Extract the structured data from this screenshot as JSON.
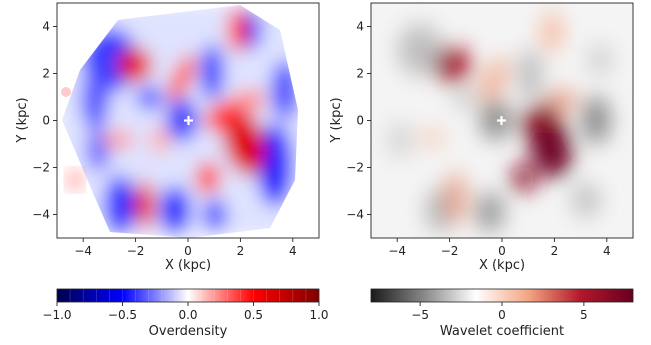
{
  "chart_data": [
    {
      "type": "heatmap",
      "xlabel": "X (kpc)",
      "ylabel": "Y (kpc)",
      "xlim": [
        -5,
        5
      ],
      "ylim": [
        -5,
        5
      ],
      "xticks": [
        -4,
        -2,
        0,
        2,
        4
      ],
      "yticks": [
        -4,
        -2,
        0,
        2,
        4
      ],
      "marker": {
        "x": 0,
        "y": 0,
        "symbol": "+"
      },
      "colorbar": {
        "label": "Overdensity",
        "range": [
          -1.0,
          1.0
        ],
        "ticks": [
          "−1.0",
          "−0.5",
          "0.0",
          "0.5",
          "1.0"
        ],
        "tick_values": [
          -1.0,
          -0.5,
          0.0,
          0.5,
          1.0
        ],
        "colormap": "seismic",
        "colors": [
          "#00004c",
          "#0000ff",
          "#ffffff",
          "#ff0000",
          "#800000"
        ]
      }
    },
    {
      "type": "heatmap",
      "xlabel": "X (kpc)",
      "ylabel": "Y (kpc)",
      "xlim": [
        -5,
        5
      ],
      "ylim": [
        -5,
        5
      ],
      "xticks": [
        -4,
        -2,
        0,
        2,
        4
      ],
      "yticks": [
        -4,
        -2,
        0,
        2,
        4
      ],
      "marker": {
        "x": 0,
        "y": 0,
        "symbol": "+"
      },
      "colorbar": {
        "label": "Wavelet coefficient",
        "range": [
          -8,
          8
        ],
        "ticks": [
          "−5",
          "0",
          "5"
        ],
        "tick_values": [
          -5,
          0,
          5
        ],
        "colormap": "RdGy_r",
        "colors": [
          "#1a1a1a",
          "#878787",
          "#ffffff",
          "#f4a582",
          "#b2182b",
          "#67001f"
        ]
      }
    }
  ]
}
